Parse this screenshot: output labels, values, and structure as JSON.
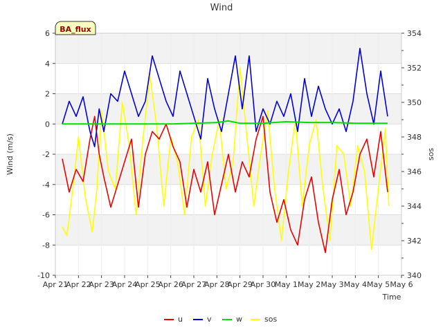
{
  "chart_data": {
    "type": "line",
    "title": "Wind",
    "site_label": "BA_flux",
    "xlabel": "Time",
    "ylabel_left": "Wind (m/s)",
    "ylabel_right": "sos",
    "x_ticks": [
      "Apr 21",
      "Apr 22",
      "Apr 23",
      "Apr 24",
      "Apr 25",
      "Apr 26",
      "Apr 27",
      "Apr 28",
      "Apr 29",
      "Apr 30",
      "May 1",
      "May 2",
      "May 3",
      "May 4",
      "May 5",
      "May 6"
    ],
    "x_range_days": [
      0,
      15
    ],
    "ylim_left": [
      -10,
      6
    ],
    "ylim_right": [
      340,
      354
    ],
    "left_ticks": [
      "-10",
      "-8",
      "-6",
      "-4",
      "-2",
      "0",
      "2",
      "4",
      "6"
    ],
    "right_ticks": [
      "340",
      "342",
      "344",
      "346",
      "348",
      "350",
      "352",
      "354"
    ],
    "series": [
      {
        "name": "u",
        "axis": "left",
        "color": "#ee0000",
        "x": [
          0.3,
          0.6,
          0.9,
          1.2,
          1.5,
          1.7,
          1.9,
          2.1,
          2.4,
          2.7,
          3.0,
          3.3,
          3.6,
          3.9,
          4.2,
          4.5,
          4.8,
          5.1,
          5.4,
          5.7,
          6.0,
          6.3,
          6.6,
          6.9,
          7.2,
          7.5,
          7.8,
          8.1,
          8.4,
          8.7,
          9.0,
          9.3,
          9.6,
          9.9,
          10.2,
          10.5,
          10.8,
          11.1,
          11.4,
          11.7,
          12.0,
          12.3,
          12.6,
          12.9,
          13.2,
          13.5,
          13.8,
          14.1,
          14.4
        ],
        "values": [
          -2.3,
          -4.5,
          -3.0,
          -3.8,
          -1.0,
          0.5,
          -2.0,
          -3.5,
          -5.5,
          -4.0,
          -2.5,
          -1.0,
          -5.5,
          -2.0,
          -0.5,
          -1.0,
          0.0,
          -1.5,
          -2.5,
          -5.5,
          -3.0,
          -4.5,
          -2.5,
          -6.0,
          -4.0,
          -2.0,
          -4.5,
          -2.5,
          -3.5,
          -1.0,
          0.5,
          -4.5,
          -6.5,
          -5.0,
          -7.0,
          -8.0,
          -5.0,
          -3.5,
          -6.5,
          -8.5,
          -5.0,
          -3.0,
          -6.0,
          -4.5,
          -2.0,
          -1.0,
          -3.5,
          -0.5,
          -4.5
        ]
      },
      {
        "name": "v",
        "axis": "left",
        "color": "#0000dd",
        "x": [
          0.3,
          0.6,
          0.9,
          1.2,
          1.5,
          1.7,
          1.9,
          2.1,
          2.4,
          2.7,
          3.0,
          3.3,
          3.6,
          3.9,
          4.2,
          4.5,
          4.8,
          5.1,
          5.4,
          5.7,
          6.0,
          6.3,
          6.6,
          6.9,
          7.2,
          7.5,
          7.8,
          8.1,
          8.4,
          8.7,
          9.0,
          9.3,
          9.6,
          9.9,
          10.2,
          10.5,
          10.8,
          11.1,
          11.4,
          11.7,
          12.0,
          12.3,
          12.6,
          12.9,
          13.2,
          13.5,
          13.8,
          14.1,
          14.4
        ],
        "values": [
          0.0,
          1.5,
          0.5,
          1.8,
          -0.5,
          -1.5,
          1.0,
          -0.5,
          2.0,
          1.5,
          3.5,
          2.0,
          0.5,
          1.5,
          4.5,
          3.0,
          1.5,
          0.5,
          3.5,
          2.0,
          0.5,
          -1.0,
          3.0,
          1.0,
          -0.5,
          2.0,
          4.5,
          1.0,
          4.5,
          -0.5,
          1.0,
          0.0,
          1.5,
          0.5,
          2.0,
          -0.5,
          3.0,
          0.5,
          2.5,
          1.0,
          0.0,
          1.0,
          -0.5,
          1.5,
          5.0,
          2.0,
          0.0,
          3.5,
          0.5
        ]
      },
      {
        "name": "w",
        "axis": "left",
        "color": "#00dd00",
        "x": [
          0.3,
          1.0,
          2.0,
          3.0,
          4.0,
          5.0,
          6.0,
          7.0,
          7.5,
          8.0,
          9.0,
          10.0,
          11.0,
          12.0,
          13.0,
          14.0,
          14.4
        ],
        "values": [
          0.0,
          0.0,
          0.0,
          0.0,
          0.0,
          0.0,
          0.05,
          0.1,
          0.2,
          0.05,
          0.05,
          0.15,
          0.1,
          0.1,
          0.05,
          0.05,
          0.05
        ]
      },
      {
        "name": "sos",
        "axis": "right",
        "color": "#ffff00",
        "x": [
          0.3,
          0.5,
          0.8,
          1.0,
          1.3,
          1.6,
          1.8,
          2.0,
          2.3,
          2.6,
          2.9,
          3.2,
          3.5,
          3.8,
          4.1,
          4.4,
          4.7,
          5.0,
          5.3,
          5.6,
          5.9,
          6.2,
          6.5,
          6.8,
          7.1,
          7.4,
          7.7,
          8.0,
          8.3,
          8.6,
          8.9,
          9.2,
          9.5,
          9.8,
          10.1,
          10.4,
          10.7,
          11.0,
          11.3,
          11.6,
          11.9,
          12.2,
          12.5,
          12.8,
          13.1,
          13.4,
          13.7,
          14.0,
          14.3,
          14.45
        ],
        "values": [
          342.8,
          342.3,
          345.5,
          348.0,
          344.5,
          342.5,
          345.0,
          349.5,
          346.0,
          345.0,
          350.0,
          347.5,
          343.5,
          348.0,
          351.5,
          348.5,
          344.0,
          348.0,
          346.5,
          343.5,
          348.0,
          349.0,
          344.0,
          347.0,
          349.0,
          345.0,
          346.5,
          352.0,
          348.0,
          344.0,
          347.0,
          349.5,
          345.0,
          342.0,
          346.0,
          349.0,
          344.0,
          347.5,
          349.0,
          345.0,
          342.0,
          347.5,
          347.0,
          344.0,
          347.5,
          346.0,
          341.5,
          345.0,
          348.5,
          344.0
        ]
      }
    ]
  }
}
